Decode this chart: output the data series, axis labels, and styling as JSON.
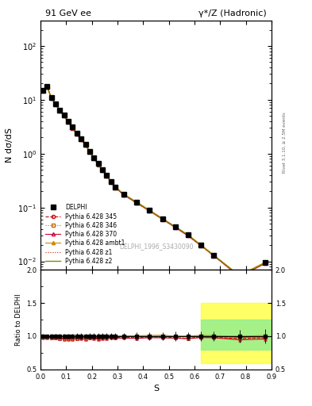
{
  "title_left": "91 GeV ee",
  "title_right": "γ*/Z (Hadronic)",
  "ylabel_main": "N dσ/dS",
  "ylabel_ratio": "Ratio to DELPHI",
  "xlabel": "S",
  "right_label": "Rivet 3.1.10, ≥ 2.5M events",
  "watermark": "DELPHI_1996_S3430090",
  "s_values": [
    0.008,
    0.025,
    0.042,
    0.058,
    0.075,
    0.092,
    0.108,
    0.125,
    0.142,
    0.158,
    0.175,
    0.192,
    0.208,
    0.225,
    0.242,
    0.258,
    0.275,
    0.292,
    0.325,
    0.375,
    0.425,
    0.475,
    0.525,
    0.575,
    0.625,
    0.675,
    0.775,
    0.875
  ],
  "delphi_y": [
    15.0,
    18.0,
    11.0,
    8.5,
    6.5,
    5.2,
    4.0,
    3.1,
    2.4,
    1.9,
    1.5,
    1.1,
    0.85,
    0.65,
    0.5,
    0.4,
    0.3,
    0.24,
    0.175,
    0.125,
    0.088,
    0.062,
    0.044,
    0.031,
    0.02,
    0.013,
    0.0055,
    0.0095
  ],
  "delphi_yerr": [
    0.5,
    0.5,
    0.4,
    0.3,
    0.25,
    0.2,
    0.15,
    0.12,
    0.1,
    0.08,
    0.06,
    0.05,
    0.04,
    0.03,
    0.025,
    0.02,
    0.015,
    0.012,
    0.009,
    0.007,
    0.005,
    0.004,
    0.003,
    0.002,
    0.0015,
    0.001,
    0.0005,
    0.001
  ],
  "py345_y": [
    14.8,
    17.8,
    10.8,
    8.3,
    6.3,
    5.0,
    3.85,
    2.98,
    2.32,
    1.85,
    1.45,
    1.08,
    0.83,
    0.63,
    0.49,
    0.39,
    0.295,
    0.235,
    0.172,
    0.122,
    0.087,
    0.061,
    0.043,
    0.03,
    0.0198,
    0.0128,
    0.0053,
    0.0093
  ],
  "py346_y": [
    14.8,
    17.8,
    10.8,
    8.3,
    6.3,
    5.0,
    3.85,
    2.98,
    2.32,
    1.85,
    1.45,
    1.08,
    0.83,
    0.63,
    0.49,
    0.39,
    0.295,
    0.235,
    0.172,
    0.122,
    0.087,
    0.061,
    0.043,
    0.03,
    0.0198,
    0.0128,
    0.0053,
    0.0093
  ],
  "py370_y": [
    14.7,
    17.6,
    10.7,
    8.25,
    6.28,
    4.98,
    3.83,
    2.96,
    2.3,
    1.83,
    1.43,
    1.07,
    0.82,
    0.62,
    0.485,
    0.387,
    0.293,
    0.233,
    0.17,
    0.121,
    0.086,
    0.0605,
    0.0427,
    0.0298,
    0.0196,
    0.0127,
    0.0052,
    0.0091
  ],
  "py_ambt1_y": [
    14.9,
    18.1,
    11.0,
    8.55,
    6.52,
    5.18,
    3.98,
    3.08,
    2.38,
    1.9,
    1.49,
    1.11,
    0.85,
    0.65,
    0.502,
    0.401,
    0.303,
    0.241,
    0.176,
    0.126,
    0.089,
    0.063,
    0.044,
    0.031,
    0.0203,
    0.0131,
    0.0055,
    0.0096
  ],
  "py_z1_y": [
    14.8,
    17.8,
    10.8,
    8.3,
    6.3,
    5.0,
    3.85,
    2.98,
    2.32,
    1.85,
    1.45,
    1.08,
    0.83,
    0.63,
    0.49,
    0.39,
    0.295,
    0.235,
    0.172,
    0.122,
    0.087,
    0.061,
    0.043,
    0.03,
    0.0198,
    0.0128,
    0.0053,
    0.0093
  ],
  "py_z2_y": [
    14.9,
    18.0,
    11.0,
    8.5,
    6.5,
    5.15,
    3.96,
    3.06,
    2.36,
    1.88,
    1.47,
    1.1,
    0.84,
    0.64,
    0.498,
    0.397,
    0.3,
    0.239,
    0.175,
    0.125,
    0.088,
    0.062,
    0.044,
    0.031,
    0.02,
    0.013,
    0.0054,
    0.0094
  ],
  "color_345": "#cc0000",
  "color_346": "#cc6600",
  "color_370": "#cc0033",
  "color_ambt1": "#cc8800",
  "color_z1": "#cc2200",
  "color_z2": "#888800",
  "ylim_main": [
    0.007,
    300
  ],
  "ylim_ratio": [
    0.5,
    2.0
  ],
  "xlim": [
    0.0,
    0.9
  ]
}
